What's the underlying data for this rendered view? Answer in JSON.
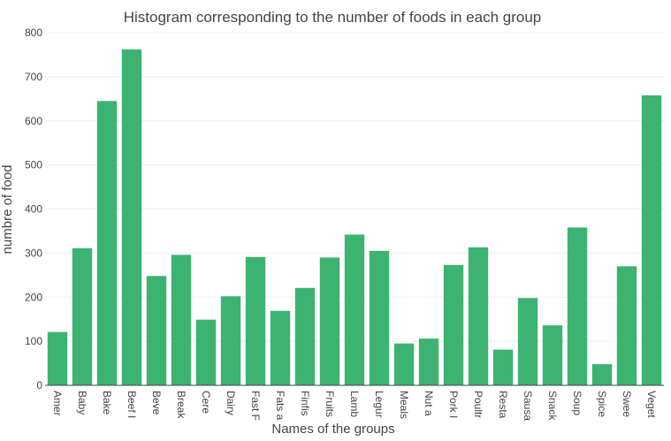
{
  "chart_data": {
    "type": "bar",
    "title": "Histogram corresponding to the number of foods in each group",
    "xlabel": "Names of the groups",
    "ylabel": "numbre of food",
    "ylim": [
      0,
      800
    ],
    "yticks": [
      0,
      100,
      200,
      300,
      400,
      500,
      600,
      700,
      800
    ],
    "grid": true,
    "bar_color": "#3cb371",
    "categories": [
      "Amer",
      "Baby",
      "Bake",
      "Beef I",
      "Beve",
      "Break",
      "Cere",
      "Dairy",
      "Fast F",
      "Fats a",
      "Finfis",
      "Fruits",
      "Lamb",
      "Legur",
      "Meals",
      "Nut a",
      "Pork I",
      "Poultr",
      "Resta",
      "Sausa",
      "Snack",
      "Soup",
      "Spice",
      "Swee",
      "Veget"
    ],
    "values": [
      121,
      311,
      645,
      762,
      248,
      296,
      149,
      202,
      291,
      169,
      221,
      290,
      342,
      305,
      95,
      106,
      273,
      313,
      81,
      198,
      136,
      358,
      48,
      270,
      658
    ]
  }
}
